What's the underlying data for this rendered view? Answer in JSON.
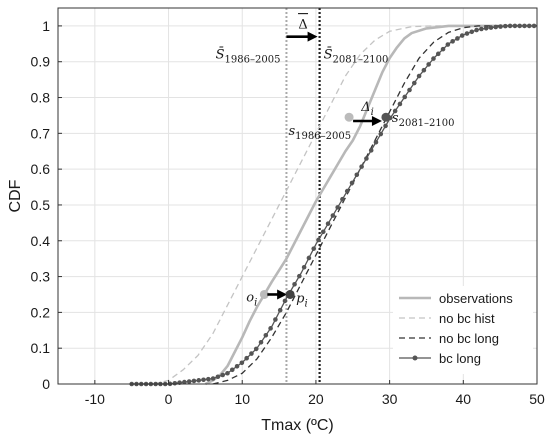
{
  "chart_data": {
    "type": "line",
    "xlabel": "Tmax (ºC)",
    "ylabel": "CDF",
    "xlim": [
      -15,
      50
    ],
    "ylim": [
      0,
      1.05
    ],
    "xticks": [
      -10,
      0,
      10,
      20,
      30,
      40,
      50
    ],
    "xtick_labels": [
      "-10",
      "0",
      "10",
      "20",
      "30",
      "40",
      "50"
    ],
    "yticks": [
      0,
      0.1,
      0.2,
      0.3,
      0.4,
      0.5,
      0.6,
      0.7,
      0.8,
      0.9,
      1
    ],
    "ytick_labels": [
      "0",
      "0.1",
      "0.2",
      "0.3",
      "0.4",
      "0.5",
      "0.6",
      "0.7",
      "0.8",
      "0.9",
      "1"
    ],
    "grid": true,
    "legend_position": "bottom-right",
    "series": [
      {
        "name": "observations",
        "style": "solid",
        "color": "#b8b8b8",
        "points": [
          [
            5,
            0
          ],
          [
            6,
            0.01
          ],
          [
            7,
            0.025
          ],
          [
            8,
            0.05
          ],
          [
            9,
            0.09
          ],
          [
            10,
            0.13
          ],
          [
            11,
            0.175
          ],
          [
            12,
            0.215
          ],
          [
            13,
            0.25
          ],
          [
            14,
            0.285
          ],
          [
            16,
            0.35
          ],
          [
            18,
            0.43
          ],
          [
            20,
            0.51
          ],
          [
            22,
            0.58
          ],
          [
            24,
            0.65
          ],
          [
            25,
            0.68
          ],
          [
            26,
            0.72
          ],
          [
            27,
            0.77
          ],
          [
            28,
            0.82
          ],
          [
            29,
            0.87
          ],
          [
            30,
            0.91
          ],
          [
            31,
            0.94
          ],
          [
            32,
            0.965
          ],
          [
            33,
            0.98
          ],
          [
            35,
            0.993
          ],
          [
            38,
            1.0
          ],
          [
            50,
            1.0
          ]
        ]
      },
      {
        "name": "no bc hist",
        "style": "dashed",
        "color": "#c4c4c4",
        "points": [
          [
            -2,
            0
          ],
          [
            0,
            0.01
          ],
          [
            2,
            0.04
          ],
          [
            4,
            0.08
          ],
          [
            6,
            0.14
          ],
          [
            8,
            0.22
          ],
          [
            10,
            0.3
          ],
          [
            12,
            0.38
          ],
          [
            14,
            0.46
          ],
          [
            16,
            0.54
          ],
          [
            18,
            0.62
          ],
          [
            20,
            0.7
          ],
          [
            22,
            0.78
          ],
          [
            24,
            0.86
          ],
          [
            26,
            0.92
          ],
          [
            28,
            0.96
          ],
          [
            30,
            0.985
          ],
          [
            33,
            0.998
          ],
          [
            36,
            1.0
          ],
          [
            50,
            1.0
          ]
        ]
      },
      {
        "name": "no bc long",
        "style": "dashed",
        "color": "#333333",
        "points": [
          [
            6,
            0
          ],
          [
            8,
            0.01
          ],
          [
            10,
            0.03
          ],
          [
            12,
            0.07
          ],
          [
            14,
            0.13
          ],
          [
            16,
            0.2
          ],
          [
            18,
            0.28
          ],
          [
            20,
            0.36
          ],
          [
            22,
            0.44
          ],
          [
            24,
            0.52
          ],
          [
            26,
            0.6
          ],
          [
            28,
            0.68
          ],
          [
            30,
            0.76
          ],
          [
            32,
            0.84
          ],
          [
            34,
            0.91
          ],
          [
            36,
            0.955
          ],
          [
            38,
            0.982
          ],
          [
            40,
            0.995
          ],
          [
            42,
            1.0
          ],
          [
            50,
            1.0
          ]
        ]
      },
      {
        "name": "bc long",
        "style": "solid-dots",
        "color": "#555555",
        "points": [
          [
            -5,
            0
          ],
          [
            0,
            0
          ],
          [
            2,
            0.005
          ],
          [
            4,
            0.01
          ],
          [
            6,
            0.015
          ],
          [
            8,
            0.03
          ],
          [
            10,
            0.06
          ],
          [
            12,
            0.1
          ],
          [
            14,
            0.16
          ],
          [
            16,
            0.24
          ],
          [
            18,
            0.31
          ],
          [
            20,
            0.39
          ],
          [
            22,
            0.46
          ],
          [
            24,
            0.53
          ],
          [
            26,
            0.6
          ],
          [
            28,
            0.67
          ],
          [
            30,
            0.74
          ],
          [
            32,
            0.8
          ],
          [
            34,
            0.86
          ],
          [
            36,
            0.91
          ],
          [
            38,
            0.95
          ],
          [
            40,
            0.975
          ],
          [
            42,
            0.99
          ],
          [
            44,
            0.996
          ],
          [
            46,
            1.0
          ],
          [
            50,
            1.0
          ]
        ]
      }
    ],
    "vertical_lines": [
      {
        "label": "s̄ 1986-2005",
        "x": 16,
        "style": "dotted",
        "color": "#aaaaaa"
      },
      {
        "label": "s̄ 2081-2100",
        "x": 20.5,
        "style": "dotted",
        "color": "#222222"
      }
    ],
    "annotations": {
      "delta_bar": {
        "main": "Δ",
        "x1": 16,
        "x2": 20.5,
        "y": 0.97
      },
      "delta_i": {
        "main": "Δ",
        "sub": "i",
        "x1": 24.5,
        "x2": 29.5,
        "y": 0.74
      },
      "s_bar_hist": {
        "main": "S̄",
        "sub": "1986–2005"
      },
      "s_bar_fut": {
        "main": "S̄",
        "sub": "2081–2100"
      },
      "s_hist": {
        "main": "s",
        "sub": "1986–2005",
        "x": 24.5,
        "y": 0.745
      },
      "s_fut": {
        "main": "s",
        "sub": "2081–2100",
        "x": 29.5,
        "y": 0.745
      },
      "o_i": {
        "main": "o",
        "sub": "i",
        "x": 13,
        "y": 0.25
      },
      "p_i": {
        "main": "p",
        "sub": "i",
        "x": 16.5,
        "y": 0.25
      }
    }
  }
}
